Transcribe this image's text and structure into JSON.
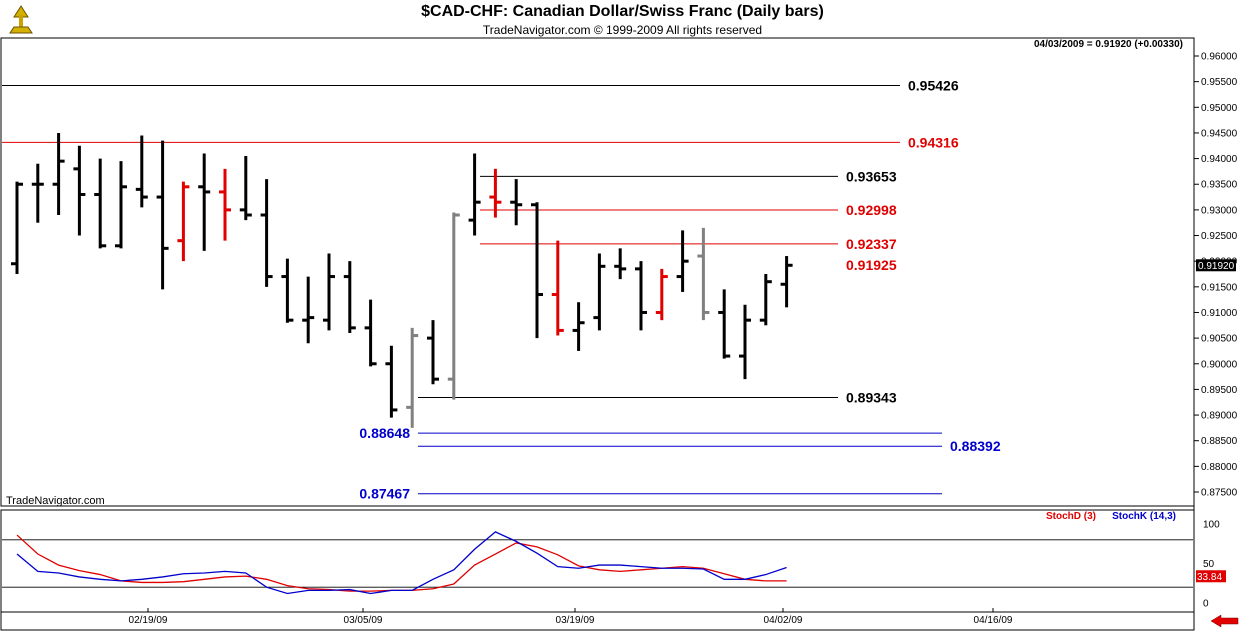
{
  "header": {
    "title": "$CAD-CHF:  Canadian Dollar/Swiss Franc  (Daily bars)",
    "subtitle": "TradeNavigator.com © 1999-2009 All rights reserved",
    "info": "04/03/2009 = 0.91920 (+0.00330)",
    "watermark": "TradeNavigator.com"
  },
  "icons": {
    "logo": "trade-navigator-logo-icon",
    "nav": "left-arrow-icon"
  },
  "colors": {
    "up": "#000000",
    "down": "#e00000",
    "gray": "#808080",
    "support": "#0000cc",
    "stoch_d": "#e00000",
    "stoch_k": "#0000cc"
  },
  "chart_data": [
    {
      "type": "ohlc",
      "title": "$CAD-CHF:  Canadian Dollar/Swiss Franc  (Daily bars)",
      "ylim": [
        0.8725,
        0.9625
      ],
      "y_ticks": [
        "0.96000",
        "0.95500",
        "0.95000",
        "0.94500",
        "0.94000",
        "0.93500",
        "0.93000",
        "0.92500",
        "0.92000",
        "0.91500",
        "0.91000",
        "0.90500",
        "0.90000",
        "0.89500",
        "0.89000",
        "0.88500",
        "0.88000",
        "0.87500"
      ],
      "x_tick_labels": [
        "02/19/09",
        "03/05/09",
        "03/19/09",
        "04/02/09",
        "04/16/09"
      ],
      "last_price_label": "0.91920",
      "bars": [
        {
          "o": 0.9195,
          "h": 0.9355,
          "l": 0.9175,
          "c": 0.935,
          "col": "black"
        },
        {
          "o": 0.935,
          "h": 0.939,
          "l": 0.9275,
          "c": 0.935,
          "col": "black"
        },
        {
          "o": 0.935,
          "h": 0.945,
          "l": 0.929,
          "c": 0.9395,
          "col": "black"
        },
        {
          "o": 0.938,
          "h": 0.9425,
          "l": 0.925,
          "c": 0.933,
          "col": "black"
        },
        {
          "o": 0.933,
          "h": 0.94,
          "l": 0.9225,
          "c": 0.923,
          "col": "black"
        },
        {
          "o": 0.923,
          "h": 0.9395,
          "l": 0.9225,
          "c": 0.9345,
          "col": "black"
        },
        {
          "o": 0.934,
          "h": 0.9445,
          "l": 0.9305,
          "c": 0.9325,
          "col": "black"
        },
        {
          "o": 0.9325,
          "h": 0.9435,
          "l": 0.9145,
          "c": 0.9225,
          "col": "black"
        },
        {
          "o": 0.924,
          "h": 0.9355,
          "l": 0.92,
          "c": 0.9345,
          "col": "red"
        },
        {
          "o": 0.9345,
          "h": 0.941,
          "l": 0.922,
          "c": 0.9335,
          "col": "black"
        },
        {
          "o": 0.9335,
          "h": 0.938,
          "l": 0.924,
          "c": 0.93,
          "col": "red"
        },
        {
          "o": 0.93,
          "h": 0.9405,
          "l": 0.928,
          "c": 0.929,
          "col": "black"
        },
        {
          "o": 0.929,
          "h": 0.936,
          "l": 0.915,
          "c": 0.917,
          "col": "black"
        },
        {
          "o": 0.917,
          "h": 0.9205,
          "l": 0.908,
          "c": 0.9085,
          "col": "black"
        },
        {
          "o": 0.9085,
          "h": 0.917,
          "l": 0.904,
          "c": 0.909,
          "col": "black"
        },
        {
          "o": 0.9085,
          "h": 0.9215,
          "l": 0.9065,
          "c": 0.917,
          "col": "black"
        },
        {
          "o": 0.917,
          "h": 0.92,
          "l": 0.906,
          "c": 0.907,
          "col": "black"
        },
        {
          "o": 0.907,
          "h": 0.9125,
          "l": 0.8995,
          "c": 0.9,
          "col": "black"
        },
        {
          "o": 0.9,
          "h": 0.9035,
          "l": 0.8895,
          "c": 0.891,
          "col": "black"
        },
        {
          "o": 0.8915,
          "h": 0.907,
          "l": 0.8875,
          "c": 0.9055,
          "col": "gray"
        },
        {
          "o": 0.905,
          "h": 0.9085,
          "l": 0.896,
          "c": 0.897,
          "col": "black"
        },
        {
          "o": 0.897,
          "h": 0.9295,
          "l": 0.893,
          "c": 0.929,
          "col": "gray"
        },
        {
          "o": 0.928,
          "h": 0.941,
          "l": 0.925,
          "c": 0.9315,
          "col": "black"
        },
        {
          "o": 0.9325,
          "h": 0.938,
          "l": 0.9285,
          "c": 0.9315,
          "col": "red"
        },
        {
          "o": 0.9315,
          "h": 0.936,
          "l": 0.927,
          "c": 0.931,
          "col": "black"
        },
        {
          "o": 0.931,
          "h": 0.9315,
          "l": 0.905,
          "c": 0.9135,
          "col": "black"
        },
        {
          "o": 0.9135,
          "h": 0.924,
          "l": 0.9055,
          "c": 0.9065,
          "col": "red"
        },
        {
          "o": 0.9065,
          "h": 0.912,
          "l": 0.9025,
          "c": 0.908,
          "col": "black"
        },
        {
          "o": 0.909,
          "h": 0.9215,
          "l": 0.9065,
          "c": 0.919,
          "col": "black"
        },
        {
          "o": 0.919,
          "h": 0.9225,
          "l": 0.9165,
          "c": 0.9185,
          "col": "black"
        },
        {
          "o": 0.9185,
          "h": 0.92,
          "l": 0.9065,
          "c": 0.91,
          "col": "black"
        },
        {
          "o": 0.91,
          "h": 0.9185,
          "l": 0.9085,
          "c": 0.917,
          "col": "red"
        },
        {
          "o": 0.917,
          "h": 0.926,
          "l": 0.914,
          "c": 0.92,
          "col": "black"
        },
        {
          "o": 0.921,
          "h": 0.9265,
          "l": 0.9085,
          "c": 0.91,
          "col": "gray"
        },
        {
          "o": 0.91,
          "h": 0.9145,
          "l": 0.901,
          "c": 0.9015,
          "col": "black"
        },
        {
          "o": 0.9015,
          "h": 0.9115,
          "l": 0.897,
          "c": 0.9085,
          "col": "black"
        },
        {
          "o": 0.9085,
          "h": 0.9175,
          "l": 0.9075,
          "c": 0.916,
          "col": "black"
        },
        {
          "o": 0.9155,
          "h": 0.921,
          "l": 0.911,
          "c": 0.9192,
          "col": "black"
        }
      ],
      "levels": [
        {
          "value": 0.95426,
          "label": "0.95426",
          "color": "black",
          "from": 0,
          "to": 37
        },
        {
          "value": 0.94316,
          "label": "0.94316",
          "color": "red",
          "from": 0,
          "to": 37
        },
        {
          "value": 0.93653,
          "label": "0.93653",
          "color": "black",
          "from": 22,
          "to": 34
        },
        {
          "value": 0.92998,
          "label": "0.92998",
          "color": "red",
          "from": 22,
          "to": 34
        },
        {
          "value": 0.92337,
          "label": "0.92337",
          "color": "red",
          "from": 22,
          "to": 34
        },
        {
          "value": 0.91925,
          "label": "0.91925",
          "color": "red",
          "from": 34,
          "to": 34
        },
        {
          "value": 0.89343,
          "label": "0.89343",
          "color": "black",
          "from": 19,
          "to": 34
        },
        {
          "value": 0.88648,
          "label": "0.88648",
          "color": "blue",
          "from": 19,
          "to": 40
        },
        {
          "value": 0.88392,
          "label": "0.88392",
          "color": "blue",
          "from": 19,
          "to": 40
        },
        {
          "value": 0.87467,
          "label": "0.87467",
          "color": "blue",
          "from": 19,
          "to": 40
        }
      ]
    },
    {
      "type": "line",
      "title": "",
      "ylim": [
        0,
        100
      ],
      "y_ticks": [
        "100",
        "50",
        "0"
      ],
      "series": [
        {
          "name": "StochD (3)",
          "color": "#e00000",
          "values": [
            86,
            62,
            48,
            41,
            36,
            28,
            26,
            26,
            27,
            30,
            33,
            34,
            30,
            22,
            18,
            17,
            15,
            15,
            16,
            16,
            18,
            24,
            48,
            62,
            76,
            71,
            61,
            47,
            42,
            40,
            42,
            44,
            46,
            44,
            37,
            30,
            28,
            28
          ]
        },
        {
          "name": "StochK (14,3)",
          "color": "#0000cc",
          "values": [
            62,
            40,
            38,
            33,
            30,
            28,
            30,
            33,
            37,
            38,
            40,
            38,
            20,
            12,
            16,
            16,
            17,
            12,
            16,
            16,
            30,
            42,
            68,
            90,
            78,
            63,
            46,
            44,
            48,
            48,
            46,
            44,
            44,
            43,
            30,
            30,
            36,
            45
          ]
        }
      ],
      "value_labels": [
        "33.84"
      ],
      "reference_lines": [
        80,
        20
      ]
    }
  ]
}
